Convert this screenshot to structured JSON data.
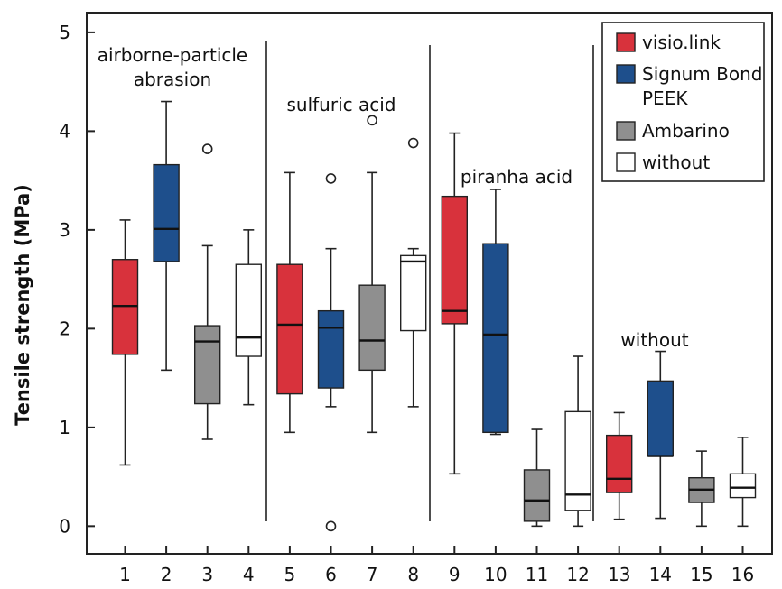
{
  "chart_data": {
    "type": "boxplot",
    "ylabel": "Tensile strength (MPa)",
    "xlabel": "",
    "ylim": [
      -0.28,
      5.2
    ],
    "yticks": [
      0,
      1,
      2,
      3,
      4,
      5
    ],
    "categories": [
      "1",
      "2",
      "3",
      "4",
      "5",
      "6",
      "7",
      "8",
      "9",
      "10",
      "11",
      "12",
      "13",
      "14",
      "15",
      "16"
    ],
    "legend": {
      "position": "top-right",
      "entries": [
        {
          "label": "visio.link",
          "color": "#d8323c"
        },
        {
          "label": "Signum Bond PEEK",
          "color": "#1e4f8c"
        },
        {
          "label": "Ambarino",
          "color": "#8f8f8f"
        },
        {
          "label": "without",
          "color": "#ffffff"
        }
      ]
    },
    "groups": [
      {
        "label": "airborne-particle abrasion",
        "range": [
          1,
          4
        ]
      },
      {
        "label": "sulfuric acid",
        "range": [
          5,
          8
        ]
      },
      {
        "label": "piranha acid",
        "range": [
          9,
          12
        ]
      },
      {
        "label": "without",
        "range": [
          13,
          16
        ]
      }
    ],
    "boxes": [
      {
        "x": "1",
        "series": "visio.link",
        "min": 0.62,
        "q1": 1.74,
        "median": 2.23,
        "q3": 2.7,
        "max": 3.1,
        "outliers": []
      },
      {
        "x": "2",
        "series": "Signum Bond PEEK",
        "min": 1.58,
        "q1": 2.68,
        "median": 3.01,
        "q3": 3.66,
        "max": 4.3,
        "outliers": []
      },
      {
        "x": "3",
        "series": "Ambarino",
        "min": 0.88,
        "q1": 1.24,
        "median": 1.87,
        "q3": 2.03,
        "max": 2.84,
        "outliers": [
          3.82
        ]
      },
      {
        "x": "4",
        "series": "without",
        "min": 1.23,
        "q1": 1.72,
        "median": 1.91,
        "q3": 2.65,
        "max": 3.0,
        "outliers": []
      },
      {
        "x": "5",
        "series": "visio.link",
        "min": 0.95,
        "q1": 1.34,
        "median": 2.04,
        "q3": 2.65,
        "max": 3.58,
        "outliers": []
      },
      {
        "x": "6",
        "series": "Signum Bond PEEK",
        "min": 1.21,
        "q1": 1.4,
        "median": 2.01,
        "q3": 2.18,
        "max": 2.81,
        "outliers": [
          3.52,
          0.0
        ]
      },
      {
        "x": "7",
        "series": "Ambarino",
        "min": 0.95,
        "q1": 1.58,
        "median": 1.88,
        "q3": 2.44,
        "max": 3.58,
        "outliers": [
          4.11
        ]
      },
      {
        "x": "8",
        "series": "without",
        "min": 1.21,
        "q1": 1.98,
        "median": 2.68,
        "q3": 2.74,
        "max": 2.81,
        "outliers": [
          3.88
        ]
      },
      {
        "x": "9",
        "series": "visio.link",
        "min": 0.53,
        "q1": 2.05,
        "median": 2.18,
        "q3": 3.34,
        "max": 3.98,
        "outliers": []
      },
      {
        "x": "10",
        "series": "Signum Bond PEEK",
        "min": 0.93,
        "q1": 0.95,
        "median": 1.94,
        "q3": 2.86,
        "max": 3.41,
        "outliers": []
      },
      {
        "x": "11",
        "series": "Ambarino",
        "min": 0.0,
        "q1": 0.05,
        "median": 0.26,
        "q3": 0.57,
        "max": 0.98,
        "outliers": []
      },
      {
        "x": "12",
        "series": "without",
        "min": 0.0,
        "q1": 0.16,
        "median": 0.32,
        "q3": 1.16,
        "max": 1.72,
        "outliers": []
      },
      {
        "x": "13",
        "series": "visio.link",
        "min": 0.07,
        "q1": 0.34,
        "median": 0.48,
        "q3": 0.92,
        "max": 1.15,
        "outliers": []
      },
      {
        "x": "14",
        "series": "Signum Bond PEEK",
        "min": 0.08,
        "q1": 0.71,
        "median": 0.71,
        "q3": 1.47,
        "max": 1.77,
        "outliers": []
      },
      {
        "x": "15",
        "series": "Ambarino",
        "min": 0.0,
        "q1": 0.24,
        "median": 0.37,
        "q3": 0.49,
        "max": 0.76,
        "outliers": []
      },
      {
        "x": "16",
        "series": "without",
        "min": 0.0,
        "q1": 0.29,
        "median": 0.39,
        "q3": 0.53,
        "max": 0.9,
        "outliers": []
      }
    ]
  }
}
